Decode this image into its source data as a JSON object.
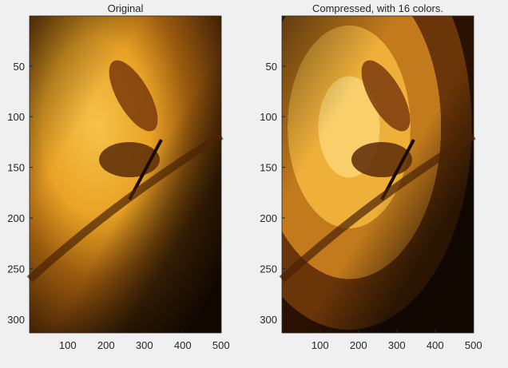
{
  "chart_data": [
    {
      "type": "image",
      "title": "Original",
      "xlim": [
        0.5,
        500.5
      ],
      "ylim": [
        0.5,
        313.5
      ],
      "ydir": "reverse",
      "xticks": [
        100,
        200,
        300,
        400,
        500
      ],
      "yticks": [
        50,
        100,
        150,
        200,
        250,
        300
      ]
    },
    {
      "type": "image",
      "title": "Compressed, with 16 colors.",
      "xlim": [
        0.5,
        500.5
      ],
      "ylim": [
        0.5,
        313.5
      ],
      "ydir": "reverse",
      "xticks": [
        100,
        200,
        300,
        400,
        500
      ],
      "yticks": [
        50,
        100,
        150,
        200,
        250,
        300
      ]
    }
  ]
}
